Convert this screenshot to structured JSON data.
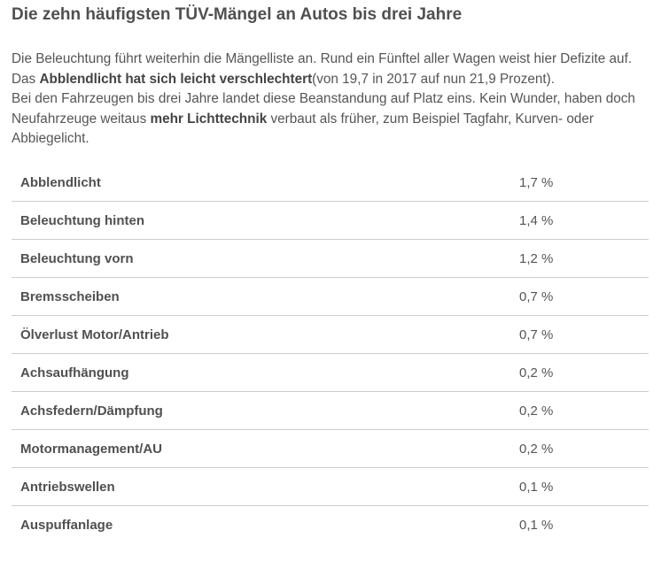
{
  "title": "Die zehn häufigsten TÜV-Mängel an Autos bis drei Jahre",
  "intro": {
    "t1": "Die Beleuchtung führt weiterhin die Mängelliste an. Rund ein Fünftel aller Wagen weist hier Defizite auf. Das ",
    "b1": "Abblendlicht hat sich leicht verschlechtert",
    "t2": "(von 19,7 in 2017 auf nun 21,9 Prozent).",
    "t3": "Bei den Fahrzeugen bis drei Jahre landet diese Beanstandung auf Platz eins. Kein Wunder, haben doch Neufahrzeuge weitaus ",
    "b2": "mehr Lichttechnik",
    "t4": " verbaut als früher, zum Beispiel Tagfahr, Kurven- oder Abbiegelicht."
  },
  "rows": [
    {
      "name": "Abblendlicht",
      "value": "1,7 %"
    },
    {
      "name": "Beleuchtung hinten",
      "value": "1,4 %"
    },
    {
      "name": "Beleuchtung vorn",
      "value": "1,2 %"
    },
    {
      "name": "Bremsscheiben",
      "value": "0,7 %"
    },
    {
      "name": "Ölverlust Motor/Antrieb",
      "value": "0,7 %"
    },
    {
      "name": "Achsaufhängung",
      "value": "0,2 %"
    },
    {
      "name": "Achsfedern/Dämpfung",
      "value": "0,2 %"
    },
    {
      "name": "Motormanagement/AU",
      "value": "0,2 %"
    },
    {
      "name": "Antriebswellen",
      "value": "0,1 %"
    },
    {
      "name": "Auspuffanlage",
      "value": "0,1 %"
    }
  ]
}
